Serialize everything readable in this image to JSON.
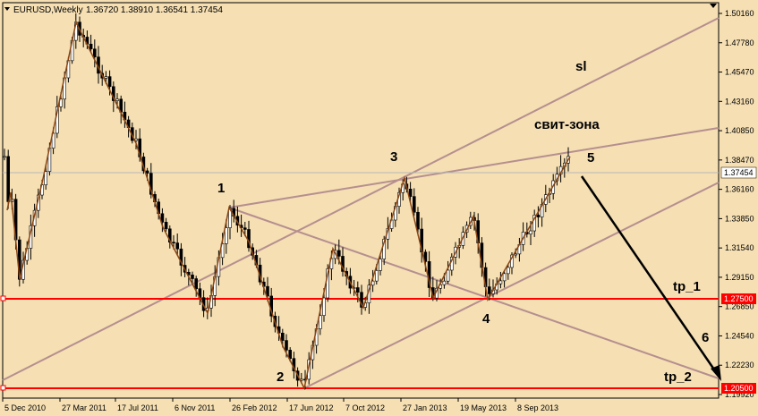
{
  "header": {
    "symbol": "EURUSD,Weekly",
    "ohlc": "1.36720 1.38910 1.36541 1.37454"
  },
  "colors": {
    "background": "#f5dfb3",
    "candle": "#000000",
    "zigzag": "#8b4513",
    "trendline": "#b58f8f",
    "level": "#ff0000",
    "price_line": "#b8b8b8",
    "forecast_arrow": "#000000"
  },
  "chart_data": {
    "type": "candlestick",
    "title": "EURUSD,Weekly",
    "x_ticks": [
      "5 Dec 2010",
      "27 Mar 2011",
      "17 Jul 2011",
      "6 Nov 2011",
      "26 Feb 2012",
      "17 Jun 2012",
      "7 Oct 2012",
      "27 Jan 2013",
      "19 May 2013",
      "8 Sep 2013"
    ],
    "y_ticks": [
      "1.50160",
      "1.47780",
      "1.45470",
      "1.43160",
      "1.40850",
      "1.38470",
      "1.36160",
      "1.33850",
      "1.31540",
      "1.29150",
      "1.26850",
      "1.24540",
      "1.22230",
      "1.19920"
    ],
    "ylim": [
      1.1992,
      1.5016
    ],
    "last_price": "1.37454",
    "levels": [
      {
        "value": "1.27500"
      },
      {
        "value": "1.20500"
      }
    ],
    "pivots": [
      {
        "label": "1",
        "value": 1.35
      },
      {
        "label": "2",
        "value": 1.205
      },
      {
        "label": "3",
        "value": 1.371
      },
      {
        "label": "4",
        "value": 1.276
      },
      {
        "label": "5",
        "value": 1.388
      }
    ],
    "annotations": [
      "sl",
      "свит-зона",
      "tp_1",
      "6",
      "tp_2"
    ]
  }
}
